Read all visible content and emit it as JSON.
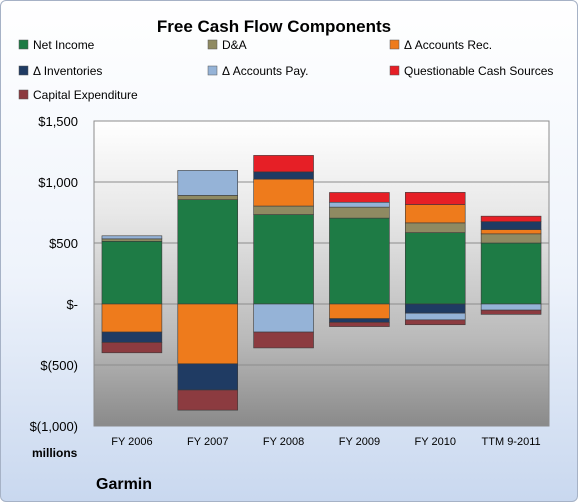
{
  "chart_data": {
    "type": "bar",
    "stacked": true,
    "title": "Free Cash Flow Components",
    "ylabel": "",
    "xlabel": "",
    "unit_label": "millions",
    "company": "Garmin",
    "categories": [
      "FY 2006",
      "FY 2007",
      "FY 2008",
      "FY 2009",
      "FY 2010",
      "TTM 9-2011"
    ],
    "ylim": [
      -1000,
      1500
    ],
    "yticks": [
      1500,
      1000,
      500,
      0,
      -500,
      -1000
    ],
    "ytick_labels": [
      "$1,500",
      "$1,000",
      "$500",
      "$-",
      "$(500)",
      "$(1,000)"
    ],
    "grid": true,
    "legend_position": "top",
    "series": [
      {
        "name": "Net Income",
        "color": "#1e7b45",
        "values": [
          514,
          855,
          733,
          704,
          585,
          500
        ]
      },
      {
        "name": "D&A",
        "color": "#8f8a62",
        "values": [
          20,
          35,
          70,
          90,
          80,
          75
        ]
      },
      {
        "name": "Δ Accounts Rec.",
        "color": "#ee7b1c",
        "values": [
          -230,
          -490,
          220,
          -120,
          150,
          35
        ]
      },
      {
        "name": "Δ Inventories",
        "color": "#1f3b63",
        "values": [
          -85,
          -215,
          60,
          -30,
          -75,
          65
        ]
      },
      {
        "name": "Δ Accounts Pay.",
        "color": "#95b3d7",
        "values": [
          25,
          205,
          -230,
          40,
          -55,
          -50
        ]
      },
      {
        "name": "Questionable Cash Sources",
        "color": "#e61f26",
        "values": [
          0,
          0,
          135,
          80,
          100,
          45
        ]
      },
      {
        "name": "Capital Expenditure",
        "color": "#8c3b40",
        "values": [
          -85,
          -165,
          -130,
          -35,
          -40,
          -35
        ]
      }
    ]
  }
}
